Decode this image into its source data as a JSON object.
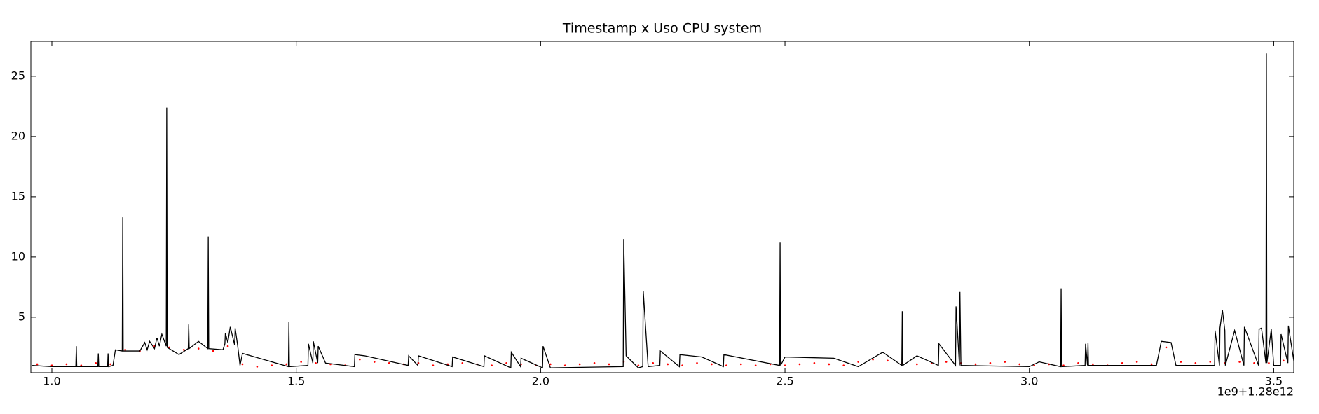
{
  "chart_data": {
    "type": "line",
    "title": "Timestamp x Uso CPU system",
    "x_offset_label": "1e9+1.28e12",
    "xlim": [
      0.957,
      3.541
    ],
    "ylim": [
      0.4,
      27.9
    ],
    "xticks": [
      {
        "value": 1,
        "label": "1.0"
      },
      {
        "value": 1.5,
        "label": "1.5"
      },
      {
        "value": 2,
        "label": "2.0"
      },
      {
        "value": 2.5,
        "label": "2.5"
      },
      {
        "value": 3,
        "label": "3.0"
      },
      {
        "value": 3.5,
        "label": "3.5"
      }
    ],
    "yticks": [
      5,
      10,
      15,
      20,
      25
    ],
    "series": [
      {
        "color": "#ff0000",
        "style": "points",
        "x": [
          0.97,
          1.0,
          1.03,
          1.06,
          1.09,
          1.12,
          1.15,
          1.18,
          1.21,
          1.24,
          1.27,
          1.3,
          1.33,
          1.36,
          1.39,
          1.42,
          1.45,
          1.48,
          1.51,
          1.54,
          1.57,
          1.6,
          1.63,
          1.66,
          1.69,
          1.72,
          1.75,
          1.78,
          1.81,
          1.84,
          1.87,
          1.9,
          1.93,
          1.96,
          1.99,
          2.02,
          2.05,
          2.08,
          2.11,
          2.14,
          2.17,
          2.2,
          2.23,
          2.26,
          2.29,
          2.32,
          2.35,
          2.38,
          2.41,
          2.44,
          2.47,
          2.5,
          2.53,
          2.56,
          2.59,
          2.62,
          2.65,
          2.68,
          2.71,
          2.74,
          2.77,
          2.8,
          2.83,
          2.86,
          2.89,
          2.92,
          2.95,
          2.98,
          3.01,
          3.04,
          3.07,
          3.1,
          3.13,
          3.16,
          3.19,
          3.22,
          3.25,
          3.28,
          3.31,
          3.34,
          3.37,
          3.4,
          3.43,
          3.46,
          3.49,
          3.52
        ],
        "values": [
          1.1,
          1.0,
          1.1,
          1.0,
          1.2,
          1.1,
          2.3,
          2.2,
          2.6,
          2.5,
          2.3,
          2.4,
          2.2,
          2.6,
          1.1,
          0.9,
          1.0,
          1.1,
          1.3,
          1.2,
          1.1,
          1.0,
          1.5,
          1.3,
          1.2,
          1.1,
          1.2,
          1.0,
          1.1,
          1.2,
          1.1,
          1.0,
          1.2,
          1.1,
          1.0,
          1.1,
          1.0,
          1.1,
          1.2,
          1.1,
          1.3,
          1.0,
          1.2,
          1.1,
          1.0,
          1.2,
          1.1,
          1.0,
          1.1,
          1.0,
          1.1,
          1.0,
          1.1,
          1.2,
          1.1,
          1.0,
          1.3,
          1.5,
          1.4,
          1.2,
          1.1,
          1.2,
          1.3,
          1.2,
          1.1,
          1.2,
          1.3,
          1.1,
          1.0,
          1.1,
          1.0,
          1.2,
          1.1,
          1.0,
          1.2,
          1.3,
          1.1,
          2.5,
          1.3,
          1.2,
          1.3,
          1.2,
          1.3,
          1.2,
          1.2,
          1.4
        ]
      },
      {
        "color": "#000000",
        "style": "line",
        "x": [
          0.96,
          1.0,
          1.049,
          1.05,
          1.051,
          1.094,
          1.095,
          1.096,
          1.114,
          1.115,
          1.116,
          1.125,
          1.13,
          1.144,
          1.145,
          1.146,
          1.18,
          1.19,
          1.195,
          1.2,
          1.21,
          1.215,
          1.22,
          1.225,
          1.234,
          1.235,
          1.236,
          1.26,
          1.279,
          1.28,
          1.281,
          1.3,
          1.319,
          1.32,
          1.321,
          1.35,
          1.354,
          1.355,
          1.36,
          1.365,
          1.374,
          1.375,
          1.38,
          1.385,
          1.39,
          1.484,
          1.485,
          1.486,
          1.524,
          1.525,
          1.534,
          1.535,
          1.544,
          1.545,
          1.56,
          1.619,
          1.62,
          1.64,
          1.729,
          1.73,
          1.749,
          1.75,
          1.819,
          1.82,
          1.884,
          1.885,
          1.939,
          1.94,
          1.959,
          1.96,
          2.004,
          2.005,
          2.02,
          2.169,
          2.17,
          2.175,
          2.2,
          2.209,
          2.21,
          2.22,
          2.244,
          2.245,
          2.284,
          2.285,
          2.33,
          2.374,
          2.375,
          2.489,
          2.49,
          2.491,
          2.5,
          2.6,
          2.65,
          2.7,
          2.739,
          2.74,
          2.741,
          2.77,
          2.814,
          2.815,
          2.849,
          2.85,
          2.857,
          2.858,
          2.86,
          3.0,
          3.02,
          3.064,
          3.065,
          3.066,
          3.114,
          3.115,
          3.119,
          3.12,
          3.121,
          3.26,
          3.27,
          3.29,
          3.3,
          3.379,
          3.38,
          3.389,
          3.39,
          3.395,
          3.4,
          3.401,
          3.42,
          3.439,
          3.44,
          3.469,
          3.47,
          3.475,
          3.484,
          3.485,
          3.486,
          3.495,
          3.5,
          3.514,
          3.515,
          3.529,
          3.53,
          3.541
        ],
        "values": [
          1.0,
          0.9,
          0.9,
          2.6,
          0.9,
          0.9,
          2.0,
          0.9,
          0.9,
          2.0,
          0.9,
          1.0,
          2.3,
          2.2,
          13.3,
          2.2,
          2.2,
          2.9,
          2.3,
          3.0,
          2.4,
          3.3,
          2.6,
          3.6,
          2.6,
          22.4,
          2.5,
          1.9,
          2.4,
          4.4,
          2.4,
          3.0,
          2.4,
          11.7,
          2.4,
          2.3,
          2.8,
          3.7,
          2.9,
          4.2,
          2.7,
          4.1,
          2.7,
          1.0,
          2.0,
          0.9,
          4.6,
          0.9,
          1.0,
          2.8,
          1.2,
          3.0,
          1.2,
          2.6,
          1.2,
          0.9,
          1.9,
          1.8,
          1.0,
          1.8,
          1.0,
          1.8,
          0.9,
          1.7,
          0.9,
          1.8,
          0.8,
          2.1,
          0.9,
          1.6,
          0.8,
          2.6,
          0.8,
          0.9,
          11.5,
          1.8,
          0.8,
          0.9,
          7.2,
          0.9,
          1.0,
          2.2,
          0.9,
          1.9,
          1.7,
          0.9,
          1.9,
          1.0,
          11.2,
          1.0,
          1.7,
          1.6,
          0.9,
          2.1,
          1.0,
          5.5,
          1.0,
          1.8,
          1.0,
          2.8,
          1.0,
          5.9,
          1.0,
          7.1,
          1.0,
          0.9,
          1.3,
          0.9,
          7.4,
          0.9,
          1.0,
          2.8,
          1.0,
          2.9,
          1.0,
          1.0,
          3.0,
          2.9,
          1.0,
          1.0,
          3.9,
          1.0,
          4.1,
          5.6,
          3.9,
          1.0,
          3.9,
          1.0,
          4.2,
          1.0,
          4.0,
          4.1,
          1.2,
          26.9,
          1.2,
          4.0,
          1.0,
          1.0,
          3.6,
          1.2,
          4.3,
          1.4
        ]
      }
    ]
  }
}
